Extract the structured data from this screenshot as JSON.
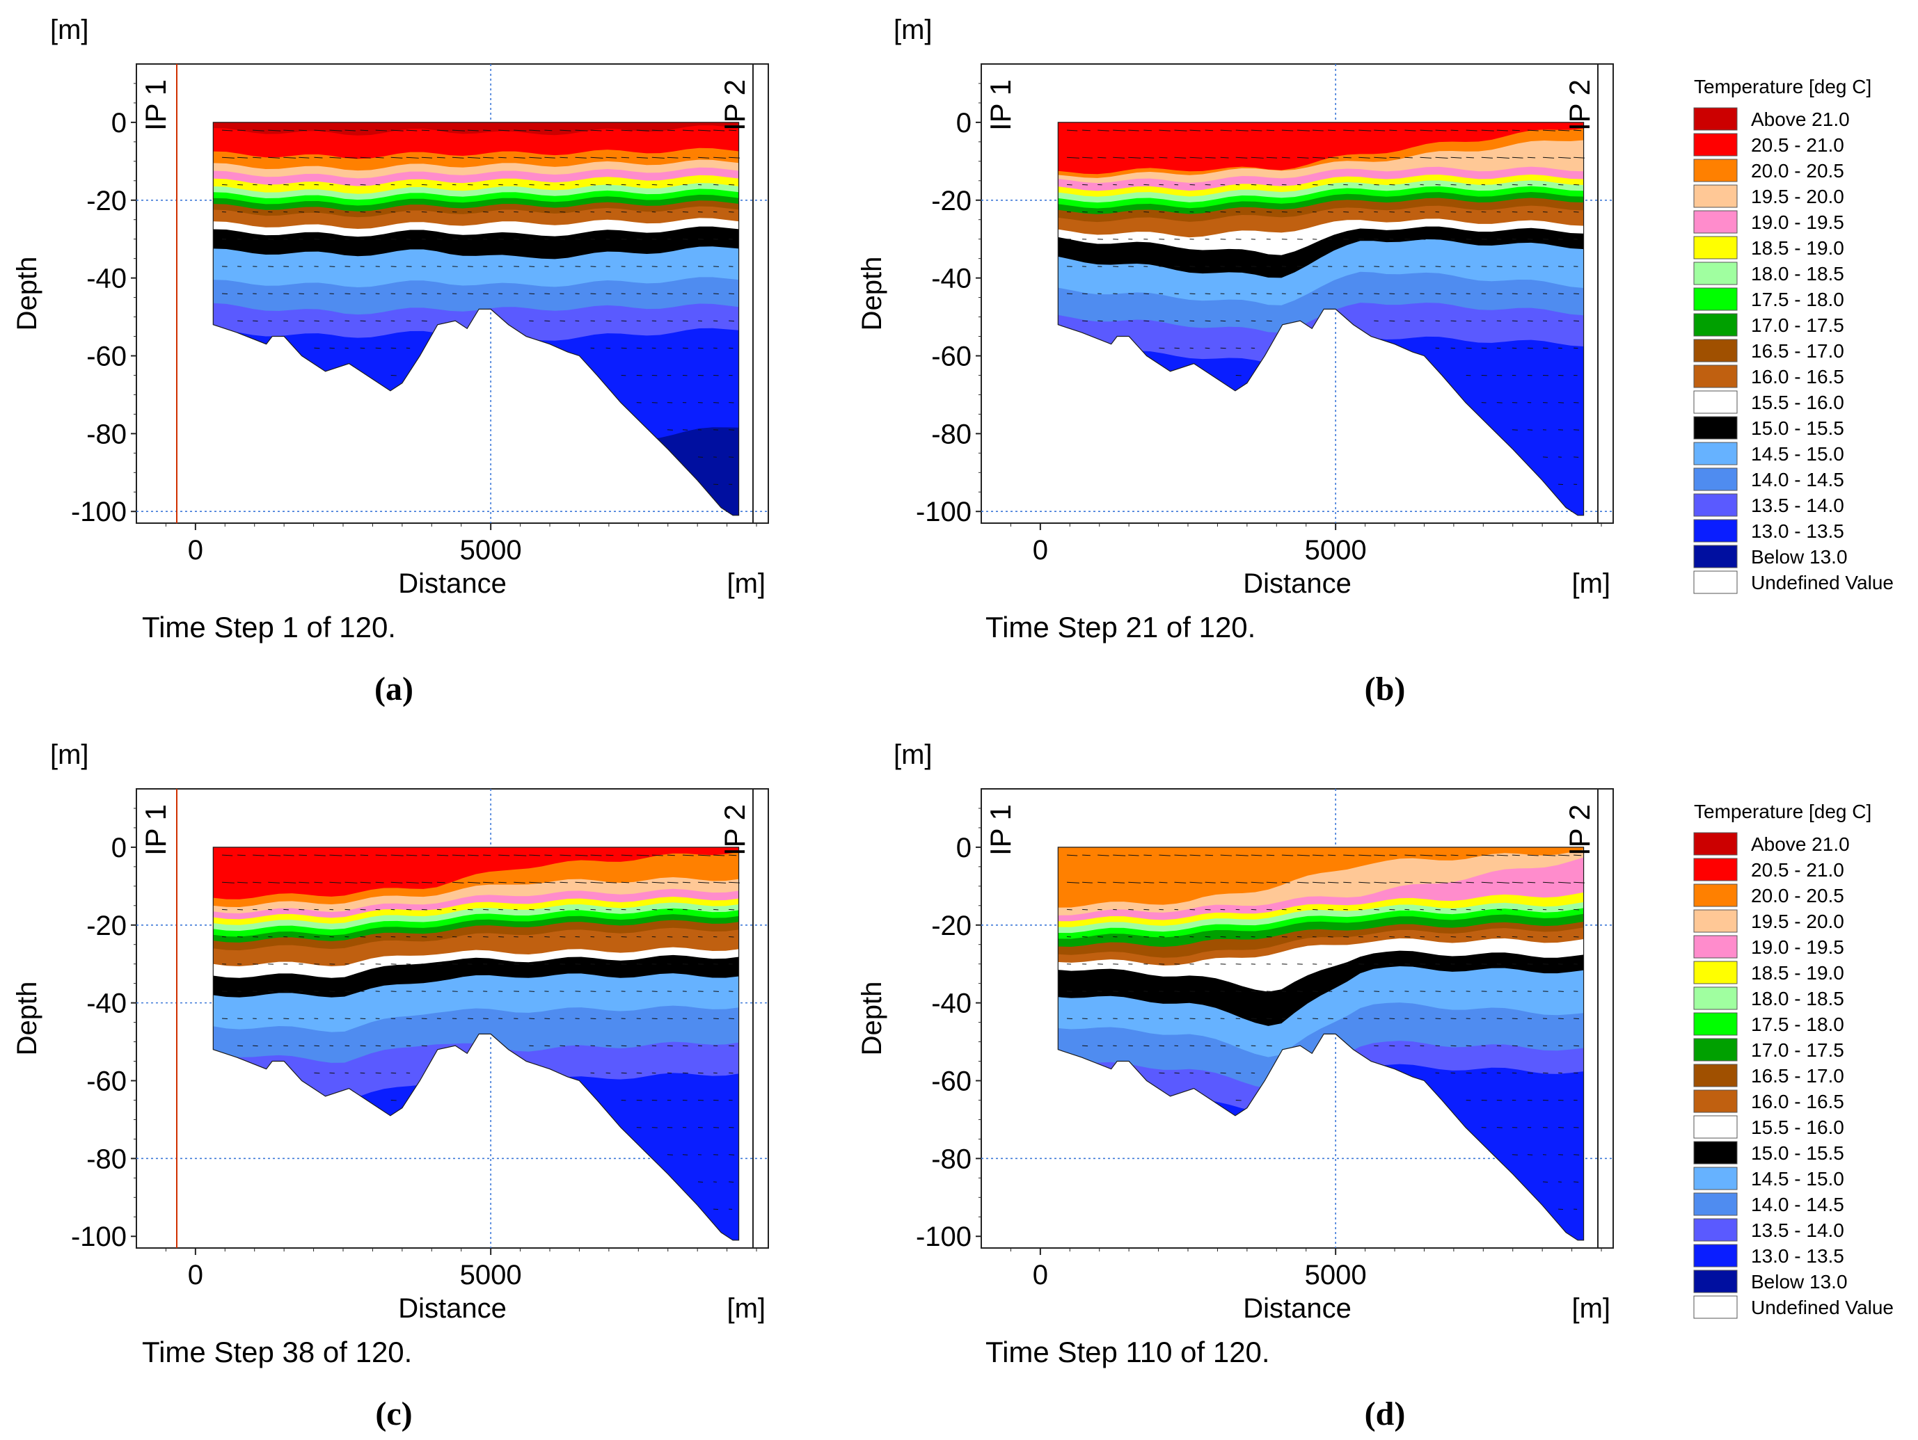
{
  "legend": {
    "title": "Temperature [deg C]",
    "entries": [
      {
        "label": "Above 21.0",
        "color": "#cc0000"
      },
      {
        "label": "20.5 - 21.0",
        "color": "#ff0000"
      },
      {
        "label": "20.0 - 20.5",
        "color": "#ff8000"
      },
      {
        "label": "19.5 - 20.0",
        "color": "#ffc896"
      },
      {
        "label": "19.0 - 19.5",
        "color": "#ff8ccc"
      },
      {
        "label": "18.5 - 19.0",
        "color": "#ffff00"
      },
      {
        "label": "18.0 - 18.5",
        "color": "#a0ffa0"
      },
      {
        "label": "17.5 - 18.0",
        "color": "#00ff00"
      },
      {
        "label": "17.0 - 17.5",
        "color": "#00a000"
      },
      {
        "label": "16.5 - 17.0",
        "color": "#a05000"
      },
      {
        "label": "16.0 - 16.5",
        "color": "#c06010"
      },
      {
        "label": "15.5 - 16.0",
        "color": "#ffffff"
      },
      {
        "label": "15.0 - 15.5",
        "color": "#000000"
      },
      {
        "label": "14.5 - 15.0",
        "color": "#66b2ff"
      },
      {
        "label": "14.0 - 14.5",
        "color": "#4f8cf0"
      },
      {
        "label": "13.5 - 14.0",
        "color": "#5a5aff"
      },
      {
        "label": "13.0 - 13.5",
        "color": "#0a1eff"
      },
      {
        "label": "Below 13.0",
        "color": "#000fa0"
      },
      {
        "label": "Undefined Value",
        "color": "#ffffff"
      }
    ]
  },
  "chart_data": [
    {
      "type": "heatmap",
      "panel": "(a)",
      "caption": "Time Step 1 of 120.",
      "xlabel": "Distance",
      "ylabel": "Depth",
      "x_unit": "[m]",
      "y_unit": "[m]",
      "xlim": [
        -1000,
        9700
      ],
      "ylim": [
        -103,
        15
      ],
      "xticks": [
        0,
        5000
      ],
      "yticks": [
        0,
        -20,
        -40,
        -60,
        -80,
        -100
      ],
      "grid_x": [
        5000
      ],
      "grid_y": [
        -20,
        -100
      ],
      "markers": [
        "IP 1",
        "IP 2"
      ],
      "surface_class": "Above 21.0",
      "layers": [
        {
          "cls": "20.5 - 21.0",
          "top": [
            -2,
            -3,
            -2,
            -3,
            -1
          ]
        },
        {
          "cls": "20.0 - 20.5",
          "top": [
            -8,
            -9,
            -8,
            -8,
            -7
          ]
        },
        {
          "cls": "19.5 - 20.0",
          "top": [
            -11,
            -12,
            -11,
            -11,
            -10
          ]
        },
        {
          "cls": "19.0 - 19.5",
          "top": [
            -13,
            -14,
            -13,
            -13,
            -12
          ]
        },
        {
          "cls": "18.5 - 19.0",
          "top": [
            -15,
            -16,
            -15,
            -15,
            -14
          ]
        },
        {
          "cls": "18.0 - 18.5",
          "top": [
            -17,
            -18,
            -17,
            -17,
            -16
          ]
        },
        {
          "cls": "17.5 - 18.0",
          "top": [
            -18.5,
            -19.5,
            -18.5,
            -18.5,
            -17.5
          ]
        },
        {
          "cls": "17.0 - 17.5",
          "top": [
            -20,
            -21,
            -20,
            -20,
            -19
          ]
        },
        {
          "cls": "16.5 - 17.0",
          "top": [
            -21.5,
            -22.5,
            -21.5,
            -21.5,
            -20.5
          ]
        },
        {
          "cls": "16.0 - 16.5",
          "top": [
            -23,
            -24,
            -23,
            -23,
            -22
          ]
        },
        {
          "cls": "15.5 - 16.0",
          "top": [
            -26,
            -27,
            -26,
            -26,
            -25
          ]
        },
        {
          "cls": "15.0 - 15.5",
          "top": [
            -28,
            -29,
            -28,
            -29,
            -27
          ]
        },
        {
          "cls": "14.5 - 15.0",
          "top": [
            -33,
            -34,
            -33,
            -35,
            -32
          ]
        },
        {
          "cls": "14.0 - 14.5",
          "top": [
            -41,
            -42,
            -41,
            -42,
            -40
          ]
        },
        {
          "cls": "13.5 - 14.0",
          "top": [
            -47,
            -49,
            -48,
            -48,
            -47
          ]
        },
        {
          "cls": "13.0 - 13.5",
          "top": [
            -54,
            -55,
            -54,
            -56,
            -53
          ]
        },
        {
          "cls": "Below 13.0",
          "top": [
            -90,
            -90,
            -90,
            -85,
            -78
          ]
        }
      ]
    },
    {
      "type": "heatmap",
      "panel": "(b)",
      "caption": "Time Step 21 of 120.",
      "xlabel": "Distance",
      "ylabel": "Depth",
      "x_unit": "[m]",
      "y_unit": "[m]",
      "xlim": [
        -1000,
        9700
      ],
      "ylim": [
        -103,
        15
      ],
      "xticks": [
        0,
        5000
      ],
      "yticks": [
        0,
        -20,
        -40,
        -60,
        -80,
        -100
      ],
      "grid_x": [
        5000
      ],
      "grid_y": [
        -20,
        -100
      ],
      "markers": [
        "IP 1",
        "IP 2"
      ],
      "surface_class": "20.5 - 21.0",
      "layers": [
        {
          "cls": "20.0 - 20.5",
          "top": [
            -13,
            -12,
            -12,
            -8,
            -1
          ]
        },
        {
          "cls": "19.5 - 20.0",
          "top": [
            -14,
            -13,
            -12,
            -10,
            -4
          ]
        },
        {
          "cls": "19.0 - 19.5",
          "top": [
            -15,
            -15,
            -14,
            -12,
            -12
          ]
        },
        {
          "cls": "18.5 - 19.0",
          "top": [
            -17,
            -17,
            -16,
            -14,
            -14
          ]
        },
        {
          "cls": "18.0 - 18.5",
          "top": [
            -18.5,
            -18.5,
            -17.5,
            -15.5,
            -15.5
          ]
        },
        {
          "cls": "17.5 - 18.0",
          "top": [
            -20,
            -20,
            -19,
            -17,
            -17
          ]
        },
        {
          "cls": "17.0 - 17.5",
          "top": [
            -21.5,
            -21.5,
            -20.5,
            -18.5,
            -18.5
          ]
        },
        {
          "cls": "16.5 - 17.0",
          "top": [
            -23,
            -23,
            -22,
            -20,
            -20
          ]
        },
        {
          "cls": "16.0 - 16.5",
          "top": [
            -25,
            -25,
            -24,
            -22,
            -22
          ]
        },
        {
          "cls": "15.5 - 16.0",
          "top": [
            -28,
            -29,
            -28,
            -25,
            -26
          ]
        },
        {
          "cls": "15.0 - 15.5",
          "top": [
            -30,
            -32,
            -34,
            -27,
            -28
          ]
        },
        {
          "cls": "14.5 - 15.0",
          "top": [
            -35,
            -38,
            -40,
            -30,
            -32
          ]
        },
        {
          "cls": "14.0 - 14.5",
          "top": [
            -43,
            -45,
            -47,
            -38,
            -42
          ]
        },
        {
          "cls": "13.5 - 14.0",
          "top": [
            -50,
            -52,
            -54,
            -46,
            -49
          ]
        },
        {
          "cls": "13.0 - 13.5",
          "top": [
            -58,
            -60,
            -62,
            -55,
            -57
          ]
        }
      ]
    },
    {
      "type": "heatmap",
      "panel": "(c)",
      "caption": "Time Step 38 of 120.",
      "xlabel": "Distance",
      "ylabel": "Depth",
      "x_unit": "[m]",
      "y_unit": "[m]",
      "xlim": [
        -1000,
        9700
      ],
      "ylim": [
        -103,
        15
      ],
      "xticks": [
        0,
        5000
      ],
      "yticks": [
        0,
        -20,
        -40,
        -60,
        -80,
        -100
      ],
      "grid_x": [
        5000
      ],
      "grid_y": [
        -20,
        -40,
        -80
      ],
      "markers": [
        "IP 1",
        "IP 2"
      ],
      "surface_class": "20.5 - 21.0",
      "layers": [
        {
          "cls": "20.0 - 20.5",
          "top": [
            -13,
            -12,
            -10,
            -5,
            -1
          ]
        },
        {
          "cls": "19.5 - 20.0",
          "top": [
            -15,
            -14,
            -12,
            -9,
            -8
          ]
        },
        {
          "cls": "19.0 - 19.5",
          "top": [
            -16.5,
            -16,
            -14,
            -12,
            -11
          ]
        },
        {
          "cls": "18.5 - 19.0",
          "top": [
            -18,
            -17.5,
            -15.5,
            -14,
            -13
          ]
        },
        {
          "cls": "18.0 - 18.5",
          "top": [
            -19.5,
            -19,
            -17,
            -15.5,
            -14.5
          ]
        },
        {
          "cls": "17.5 - 18.0",
          "top": [
            -21,
            -20.5,
            -18.5,
            -17,
            -16
          ]
        },
        {
          "cls": "17.0 - 17.5",
          "top": [
            -22.5,
            -22,
            -20,
            -18.5,
            -17.5
          ]
        },
        {
          "cls": "16.5 - 17.0",
          "top": [
            -24,
            -23.5,
            -21.5,
            -20,
            -19
          ]
        },
        {
          "cls": "16.0 - 16.5",
          "top": [
            -26,
            -25.5,
            -23.5,
            -22,
            -21
          ]
        },
        {
          "cls": "15.5 - 16.0",
          "top": [
            -30,
            -30,
            -27,
            -27,
            -26
          ]
        },
        {
          "cls": "15.0 - 15.5",
          "top": [
            -33,
            -33,
            -29,
            -29,
            -28
          ]
        },
        {
          "cls": "14.5 - 15.0",
          "top": [
            -38,
            -38,
            -34,
            -33,
            -33
          ]
        },
        {
          "cls": "14.0 - 14.5",
          "top": [
            -46,
            -47,
            -42,
            -42,
            -41
          ]
        },
        {
          "cls": "13.5 - 14.0",
          "top": [
            -53,
            -55,
            -50,
            -52,
            -50
          ]
        },
        {
          "cls": "13.0 - 13.5",
          "top": [
            -63,
            -65,
            -60,
            -60,
            -58
          ]
        }
      ]
    },
    {
      "type": "heatmap",
      "panel": "(d)",
      "caption": "Time Step 110 of 120.",
      "xlabel": "Distance",
      "ylabel": "Depth",
      "x_unit": "[m]",
      "y_unit": "[m]",
      "xlim": [
        -1000,
        9700
      ],
      "ylim": [
        -103,
        15
      ],
      "xticks": [
        0,
        5000
      ],
      "yticks": [
        0,
        -20,
        -40,
        -60,
        -80,
        -100
      ],
      "grid_x": [
        5000
      ],
      "grid_y": [
        -20,
        -80
      ],
      "markers": [
        "IP 1",
        "IP 2"
      ],
      "surface_class": "20.0 - 20.5",
      "layers": [
        {
          "cls": "19.5 - 20.0",
          "top": [
            -15,
            -14,
            -10,
            -4,
            -1
          ]
        },
        {
          "cls": "19.0 - 19.5",
          "top": [
            -17,
            -16,
            -14,
            -12,
            -3
          ]
        },
        {
          "cls": "18.5 - 19.0",
          "top": [
            -18.5,
            -18,
            -16,
            -14,
            -12
          ]
        },
        {
          "cls": "18.0 - 18.5",
          "top": [
            -20,
            -19.5,
            -17.5,
            -15.5,
            -14.5
          ]
        },
        {
          "cls": "17.5 - 18.0",
          "top": [
            -21.5,
            -21,
            -19,
            -17,
            -16
          ]
        },
        {
          "cls": "17.0 - 17.5",
          "top": [
            -23,
            -22.5,
            -20.5,
            -18.5,
            -17.5
          ]
        },
        {
          "cls": "16.5 - 17.0",
          "top": [
            -25,
            -25,
            -22.5,
            -20.5,
            -19.5
          ]
        },
        {
          "cls": "16.0 - 16.5",
          "top": [
            -27,
            -28,
            -25,
            -22,
            -21
          ]
        },
        {
          "cls": "15.5 - 16.0",
          "top": [
            -29,
            -30,
            -27,
            -24,
            -24
          ]
        },
        {
          "cls": "15.0 - 15.5",
          "top": [
            -31,
            -33,
            -37,
            -27,
            -28
          ]
        },
        {
          "cls": "14.5 - 15.0",
          "top": [
            -38,
            -40,
            -46,
            -31,
            -32
          ]
        },
        {
          "cls": "14.0 - 14.5",
          "top": [
            -46,
            -48,
            -54,
            -40,
            -43
          ]
        },
        {
          "cls": "13.5 - 14.0",
          "top": [
            -55,
            -57,
            -62,
            -50,
            -52
          ]
        },
        {
          "cls": "13.0 - 13.5",
          "top": [
            -62,
            -65,
            -68,
            -56,
            -58
          ]
        }
      ]
    }
  ]
}
